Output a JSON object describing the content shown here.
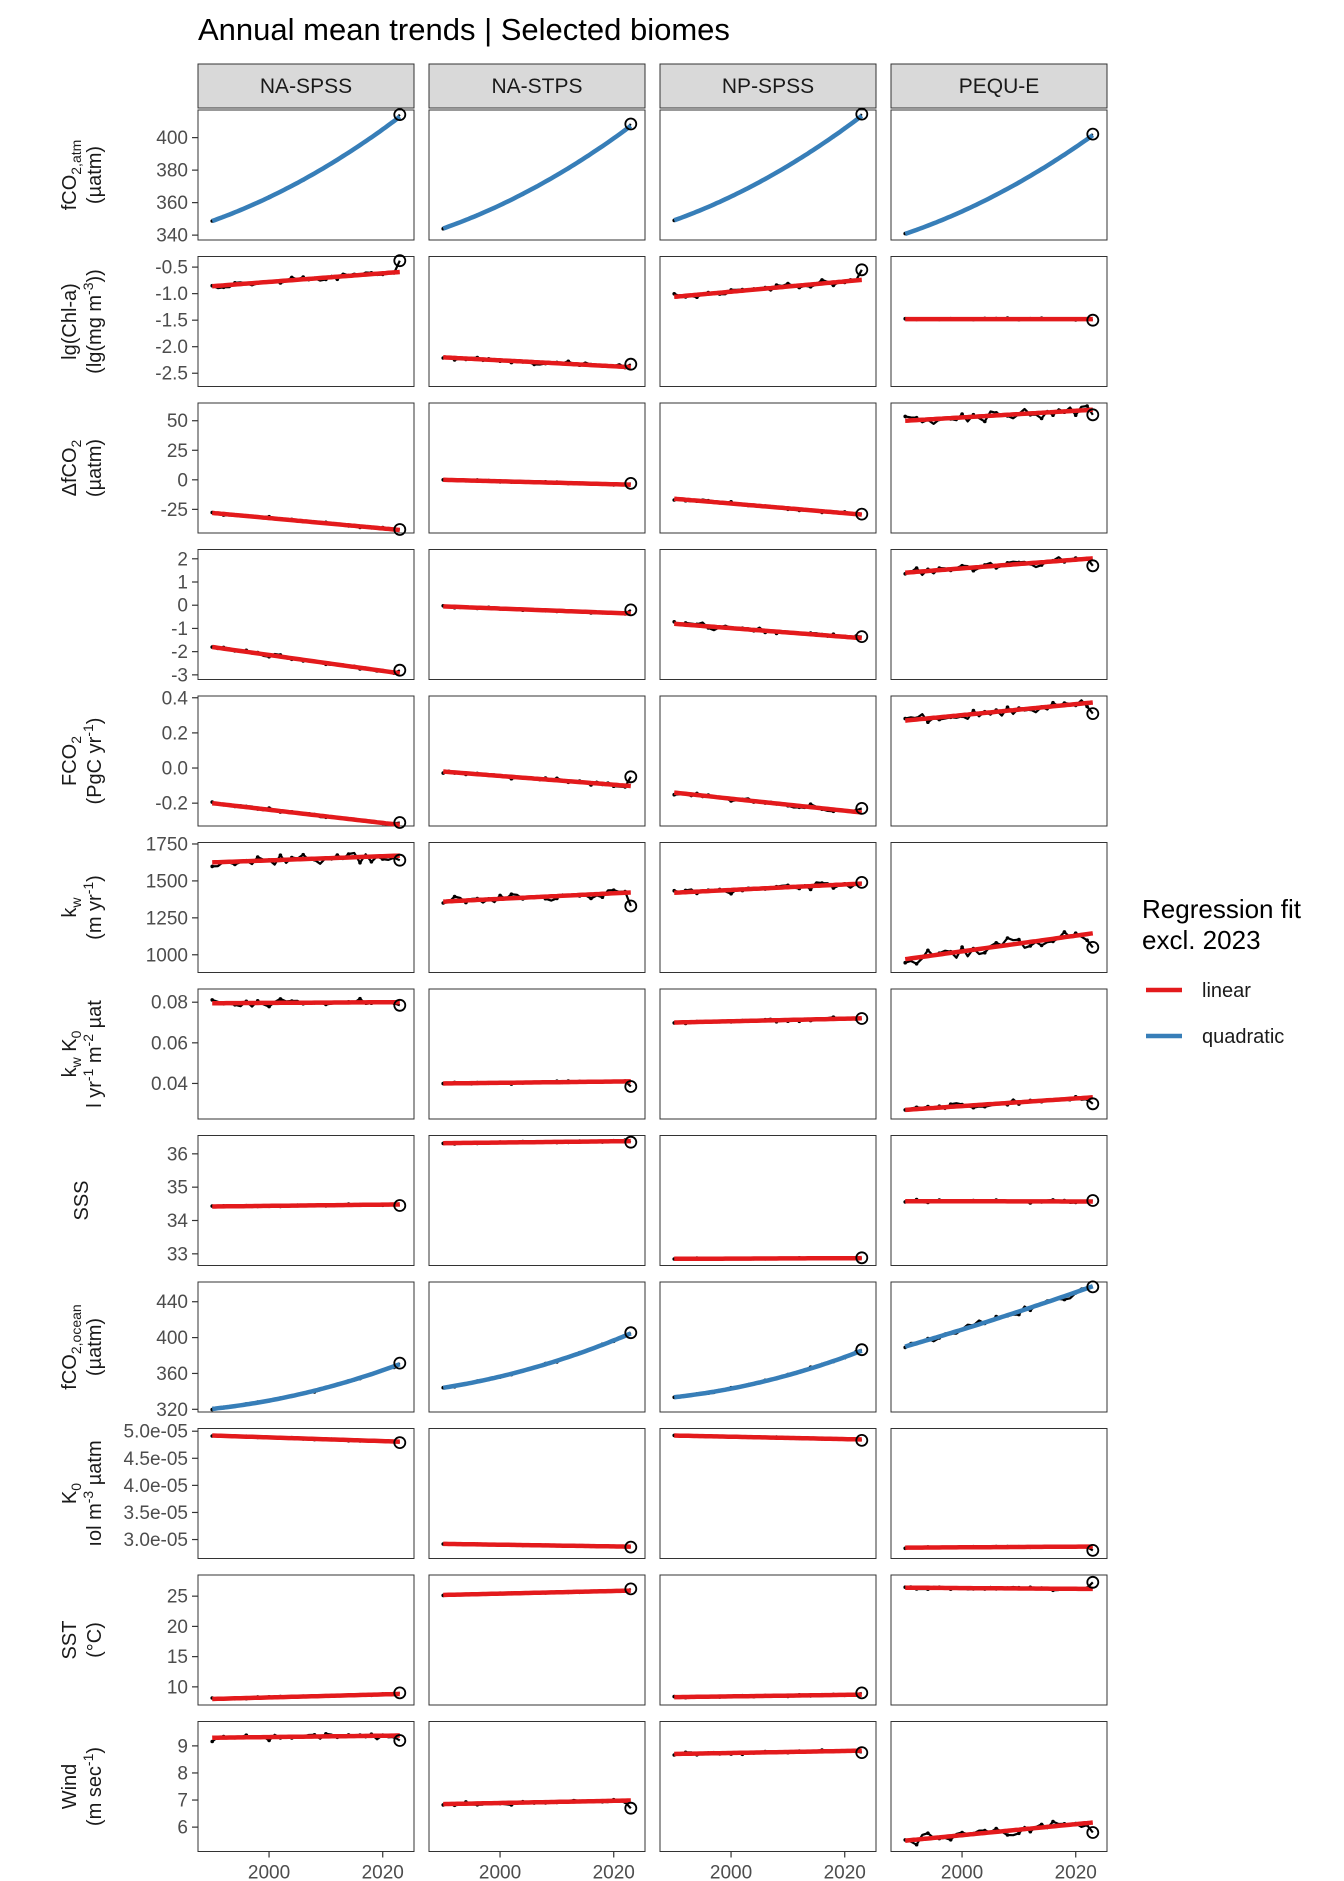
{
  "chart_data": {
    "type": "line",
    "title": "Annual mean trends | Selected biomes",
    "facets": [
      "NA-SPSS",
      "NA-STPS",
      "NP-SPSS",
      "PEQU-E"
    ],
    "xlim": [
      1987.5,
      2025.5
    ],
    "x_ticks": [
      2000,
      2020
    ],
    "x_tick_labels": [
      "2000",
      "2020"
    ],
    "legend": {
      "title_lines": [
        "Regression fit",
        "excl. 2023"
      ],
      "entries": [
        {
          "label": "linear",
          "color": "#e31a1c"
        },
        {
          "label": "quadratic",
          "color": "#377eb8"
        }
      ],
      "position": "right"
    },
    "colors": {
      "observed": "#000000",
      "linear": "#e31a1c",
      "quadratic": "#377eb8"
    },
    "rows": [
      {
        "id": "fco2atm",
        "label": [
          [
            {
              "t": "fCO"
            },
            {
              "t": "2,atm",
              "sub": true
            }
          ],
          [
            {
              "t": "(µatm)"
            }
          ]
        ],
        "ylim": [
          337,
          417
        ],
        "ticks": [
          340,
          360,
          380,
          400
        ],
        "tick_labels": [
          "340",
          "360",
          "380",
          "400"
        ],
        "fit": "quadratic",
        "series": [
          {
            "start": 348.7,
            "end": 410.2,
            "obs2023": 414.2,
            "noise": 0.3,
            "curve": 0.35
          },
          {
            "start": 344.1,
            "end": 404.6,
            "obs2023": 408.4,
            "noise": 0.3,
            "curve": 0.35
          },
          {
            "start": 349.1,
            "end": 410.8,
            "obs2023": 414.5,
            "noise": 0.3,
            "curve": 0.35
          },
          {
            "start": 340.8,
            "end": 399.0,
            "obs2023": 402.2,
            "noise": 0.3,
            "curve": 0.35
          }
        ]
      },
      {
        "id": "chla",
        "label": [
          [
            {
              "t": "lg(Chl-a)"
            }
          ],
          [
            {
              "t": "(lg(mg m"
            },
            {
              "t": "-3",
              "sup": true
            },
            {
              "t": "))"
            }
          ]
        ],
        "ylim": [
          -2.75,
          -0.3
        ],
        "ticks": [
          -2.5,
          -2.0,
          -1.5,
          -1.0,
          -0.5
        ],
        "tick_labels": [
          "-2.5",
          "-2.0",
          "-1.5",
          "-1.0",
          "-0.5"
        ],
        "fit": "linear",
        "series": [
          {
            "start": -0.86,
            "end": -0.6,
            "obs2023": -0.38,
            "noise": 0.06
          },
          {
            "start": -2.2,
            "end": -2.38,
            "obs2023": -2.33,
            "noise": 0.06
          },
          {
            "start": -1.06,
            "end": -0.75,
            "obs2023": -0.55,
            "noise": 0.07
          },
          {
            "start": -1.48,
            "end": -1.48,
            "obs2023": -1.5,
            "noise": 0.02
          }
        ]
      },
      {
        "id": "dfco2",
        "label": [
          [
            {
              "t": "ΔfCO"
            },
            {
              "t": "2",
              "sub": true
            }
          ],
          [
            {
              "t": "(µatm)"
            }
          ]
        ],
        "ylim": [
          -45,
          65
        ],
        "ticks": [
          -25,
          0,
          25,
          50
        ],
        "tick_labels": [
          "-25",
          "0",
          "25",
          "50"
        ],
        "fit": "linear",
        "series": [
          {
            "start": -28,
            "end": -42,
            "obs2023": -42,
            "noise": 1.2
          },
          {
            "start": 0,
            "end": -4,
            "obs2023": -3,
            "noise": 1.0
          },
          {
            "start": -16,
            "end": -29,
            "obs2023": -29,
            "noise": 1.5
          },
          {
            "start": 50,
            "end": 59,
            "obs2023": 55,
            "noise": 6
          }
        ]
      },
      {
        "id": "flux",
        "label": [],
        "ylim": [
          -3.2,
          2.4
        ],
        "ticks": [
          -3,
          -2,
          -1,
          0,
          1,
          2
        ],
        "tick_labels": [
          "-3",
          "-2",
          "-1",
          "0",
          "1",
          "2"
        ],
        "fit": "linear",
        "series": [
          {
            "start": -1.8,
            "end": -2.9,
            "obs2023": -2.8,
            "noise": 0.1
          },
          {
            "start": -0.05,
            "end": -0.35,
            "obs2023": -0.2,
            "noise": 0.05
          },
          {
            "start": -0.8,
            "end": -1.4,
            "obs2023": -1.35,
            "noise": 0.15
          },
          {
            "start": 1.4,
            "end": 2.0,
            "obs2023": 1.7,
            "noise": 0.25
          }
        ]
      },
      {
        "id": "fco2",
        "label": [
          [
            {
              "t": "FCO"
            },
            {
              "t": "2",
              "sub": true
            }
          ],
          [
            {
              "t": "(PgC yr"
            },
            {
              "t": "-1",
              "sup": true
            },
            {
              "t": ")"
            }
          ]
        ],
        "ylim": [
          -0.33,
          0.41
        ],
        "ticks": [
          -0.2,
          0.0,
          0.2,
          0.4
        ],
        "tick_labels": [
          "-0.2",
          "0.0",
          "0.2",
          "0.4"
        ],
        "fit": "linear",
        "series": [
          {
            "start": -0.2,
            "end": -0.32,
            "obs2023": -0.31,
            "noise": 0.01
          },
          {
            "start": -0.02,
            "end": -0.1,
            "obs2023": -0.05,
            "noise": 0.012
          },
          {
            "start": -0.14,
            "end": -0.25,
            "obs2023": -0.23,
            "noise": 0.02
          },
          {
            "start": 0.27,
            "end": 0.37,
            "obs2023": 0.31,
            "noise": 0.035
          }
        ]
      },
      {
        "id": "kw",
        "label": [
          [
            {
              "t": "k"
            },
            {
              "t": "w",
              "sub": true
            }
          ],
          [
            {
              "t": "(m yr"
            },
            {
              "t": "-1",
              "sup": true
            },
            {
              "t": ")"
            }
          ]
        ],
        "ylim": [
          880,
          1760
        ],
        "ticks": [
          1000,
          1250,
          1500,
          1750
        ],
        "tick_labels": [
          "1000",
          "1250",
          "1500",
          "1750"
        ],
        "fit": "linear",
        "series": [
          {
            "start": 1625,
            "end": 1670,
            "obs2023": 1640,
            "noise": 40
          },
          {
            "start": 1360,
            "end": 1420,
            "obs2023": 1330,
            "noise": 30
          },
          {
            "start": 1420,
            "end": 1480,
            "obs2023": 1490,
            "noise": 25
          },
          {
            "start": 970,
            "end": 1140,
            "obs2023": 1050,
            "noise": 50
          }
        ]
      },
      {
        "id": "kwk0",
        "label": [
          [
            {
              "t": "k"
            },
            {
              "t": "w",
              "sub": true
            },
            {
              "t": " K"
            },
            {
              "t": "0",
              "sub": true
            }
          ],
          [
            {
              "t": "l yr"
            },
            {
              "t": "-1",
              "sup": true
            },
            {
              "t": " m"
            },
            {
              "t": "-2",
              "sup": true
            },
            {
              "t": " µat"
            }
          ]
        ],
        "ylim": [
          0.0225,
          0.0865
        ],
        "ticks": [
          0.04,
          0.06,
          0.08
        ],
        "tick_labels": [
          "0.04",
          "0.06",
          "0.08"
        ],
        "fit": "linear",
        "series": [
          {
            "start": 0.0795,
            "end": 0.08,
            "obs2023": 0.0785,
            "noise": 0.0022
          },
          {
            "start": 0.04,
            "end": 0.041,
            "obs2023": 0.0385,
            "noise": 0.0007
          },
          {
            "start": 0.07,
            "end": 0.072,
            "obs2023": 0.072,
            "noise": 0.001
          },
          {
            "start": 0.027,
            "end": 0.033,
            "obs2023": 0.03,
            "noise": 0.0016
          }
        ]
      },
      {
        "id": "sss",
        "label": [
          [
            {
              "t": "SSS"
            }
          ]
        ],
        "ylim": [
          32.65,
          36.55
        ],
        "ticks": [
          33,
          34,
          35,
          36
        ],
        "tick_labels": [
          "33",
          "34",
          "35",
          "36"
        ],
        "fit": "linear",
        "series": [
          {
            "start": 34.42,
            "end": 34.48,
            "obs2023": 34.45,
            "noise": 0.04
          },
          {
            "start": 36.32,
            "end": 36.38,
            "obs2023": 36.35,
            "noise": 0.04
          },
          {
            "start": 32.85,
            "end": 32.87,
            "obs2023": 32.88,
            "noise": 0.02
          },
          {
            "start": 34.58,
            "end": 34.57,
            "obs2023": 34.6,
            "noise": 0.07
          }
        ]
      },
      {
        "id": "fco2ocean",
        "label": [
          [
            {
              "t": "fCO"
            },
            {
              "t": "2,ocean",
              "sub": true
            }
          ],
          [
            {
              "t": "(µatm)"
            }
          ]
        ],
        "ylim": [
          317,
          462
        ],
        "ticks": [
          320,
          360,
          400,
          440
        ],
        "tick_labels": [
          "320",
          "360",
          "400",
          "440"
        ],
        "fit": "quadratic",
        "series": [
          {
            "start": 320.5,
            "end": 368.0,
            "obs2023": 371.5,
            "noise": 1.5,
            "curve": 0.55
          },
          {
            "start": 344.0,
            "end": 402.0,
            "obs2023": 405.5,
            "noise": 1.5,
            "curve": 0.45
          },
          {
            "start": 333.5,
            "end": 383.0,
            "obs2023": 386.5,
            "noise": 1.5,
            "curve": 0.55
          },
          {
            "start": 390.0,
            "end": 455.0,
            "obs2023": 456.5,
            "noise": 5,
            "curve": 0.1
          }
        ]
      },
      {
        "id": "k0",
        "label": [
          [
            {
              "t": "K"
            },
            {
              "t": "0",
              "sub": true
            }
          ],
          [
            {
              "t": "ıol m"
            },
            {
              "t": "-3",
              "sup": true
            },
            {
              "t": " µatm"
            }
          ]
        ],
        "ylim": [
          2.65e-05,
          5.05e-05
        ],
        "ticks": [
          3e-05,
          3.5e-05,
          4e-05,
          4.5e-05,
          5e-05
        ],
        "tick_labels": [
          "3.0e-05",
          "3.5e-05",
          "4.0e-05",
          "4.5e-05",
          "5.0e-05"
        ],
        "fit": "linear",
        "series": [
          {
            "start": 4.92e-05,
            "end": 4.81e-05,
            "obs2023": 4.79e-05,
            "noise": 2e-07
          },
          {
            "start": 2.92e-05,
            "end": 2.87e-05,
            "obs2023": 2.86e-05,
            "noise": 8e-08
          },
          {
            "start": 4.92e-05,
            "end": 4.85e-05,
            "obs2023": 4.83e-05,
            "noise": 1.5e-07
          },
          {
            "start": 2.85e-05,
            "end": 2.87e-05,
            "obs2023": 2.8e-05,
            "noise": 1.2e-07
          }
        ]
      },
      {
        "id": "sst",
        "label": [
          [
            {
              "t": "SST"
            }
          ],
          [
            {
              "t": "(°C)"
            }
          ]
        ],
        "ylim": [
          7,
          28.5
        ],
        "ticks": [
          10,
          15,
          20,
          25
        ],
        "tick_labels": [
          "10",
          "15",
          "20",
          "25"
        ],
        "fit": "linear",
        "series": [
          {
            "start": 8.0,
            "end": 8.8,
            "obs2023": 9.0,
            "noise": 0.15
          },
          {
            "start": 25.2,
            "end": 25.9,
            "obs2023": 26.2,
            "noise": 0.15
          },
          {
            "start": 8.3,
            "end": 8.7,
            "obs2023": 9.0,
            "noise": 0.15
          },
          {
            "start": 26.4,
            "end": 26.2,
            "obs2023": 27.3,
            "noise": 0.45
          }
        ]
      },
      {
        "id": "wind",
        "label": [
          [
            {
              "t": "Wind"
            }
          ],
          [
            {
              "t": "(m sec"
            },
            {
              "t": "-1",
              "sup": true
            },
            {
              "t": ")"
            }
          ]
        ],
        "ylim": [
          5.1,
          9.9
        ],
        "ticks": [
          6,
          7,
          8,
          9
        ],
        "tick_labels": [
          "6",
          "7",
          "8",
          "9"
        ],
        "fit": "linear",
        "series": [
          {
            "start": 9.3,
            "end": 9.38,
            "obs2023": 9.2,
            "noise": 0.15
          },
          {
            "start": 6.85,
            "end": 6.98,
            "obs2023": 6.7,
            "noise": 0.08
          },
          {
            "start": 8.7,
            "end": 8.82,
            "obs2023": 8.75,
            "noise": 0.07
          },
          {
            "start": 5.5,
            "end": 6.15,
            "obs2023": 5.8,
            "noise": 0.2
          }
        ]
      }
    ]
  }
}
